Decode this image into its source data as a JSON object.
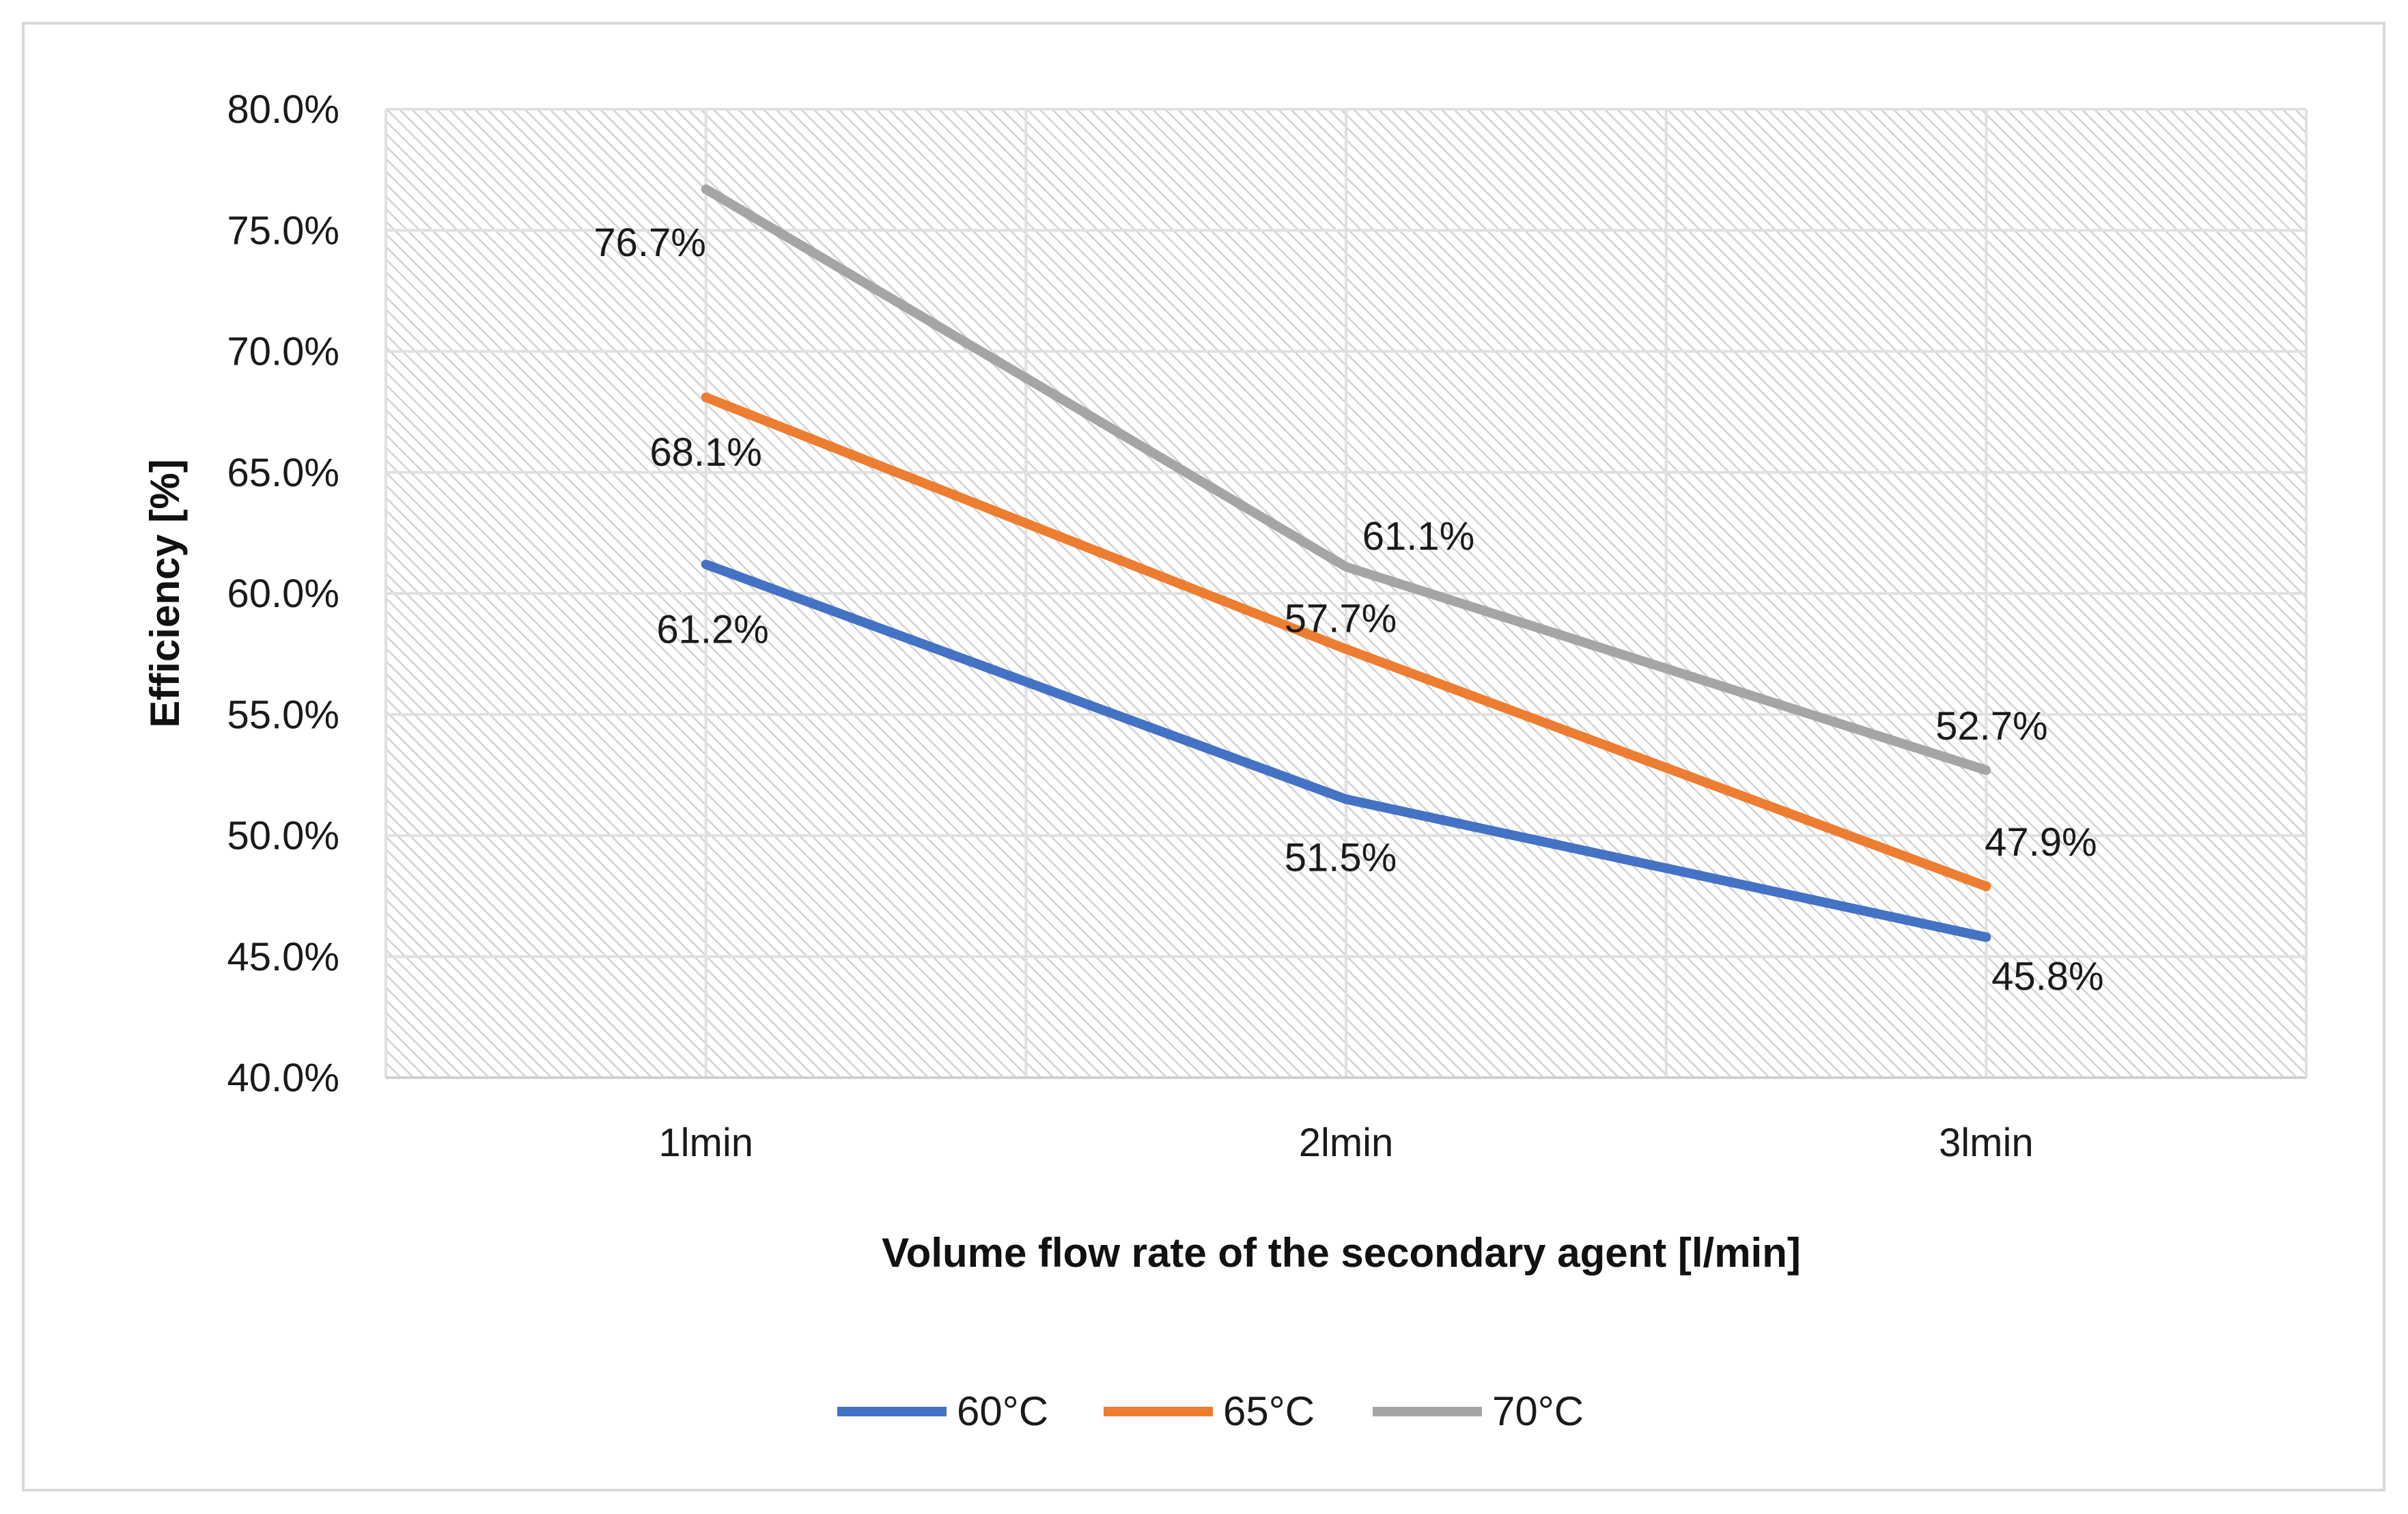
{
  "chart_data": {
    "type": "line",
    "title": "",
    "xlabel": "Volume flow rate of the secondary agent [l/min]",
    "ylabel": "Efficiency [%]",
    "categories": [
      "1lmin",
      "2lmin",
      "3lmin"
    ],
    "ylim": [
      40.0,
      80.0
    ],
    "ytick_step": 5.0,
    "ytick_labels": [
      "40.0%",
      "45.0%",
      "50.0%",
      "55.0%",
      "60.0%",
      "65.0%",
      "70.0%",
      "75.0%",
      "80.0%"
    ],
    "grid": true,
    "legend_position": "bottom",
    "series": [
      {
        "name": "60°C",
        "color": "#4472C4",
        "values": [
          61.2,
          51.5,
          45.8
        ],
        "labels": [
          "61.2%",
          "51.5%",
          "45.8%"
        ]
      },
      {
        "name": "65°C",
        "color": "#ED7D31",
        "values": [
          68.1,
          57.7,
          47.9
        ],
        "labels": [
          "68.1%",
          "57.7%",
          "47.9%"
        ]
      },
      {
        "name": "70°C",
        "color": "#A5A5A5",
        "values": [
          76.7,
          61.1,
          52.7
        ],
        "labels": [
          "76.7%",
          "61.1%",
          "52.7%"
        ]
      }
    ]
  }
}
